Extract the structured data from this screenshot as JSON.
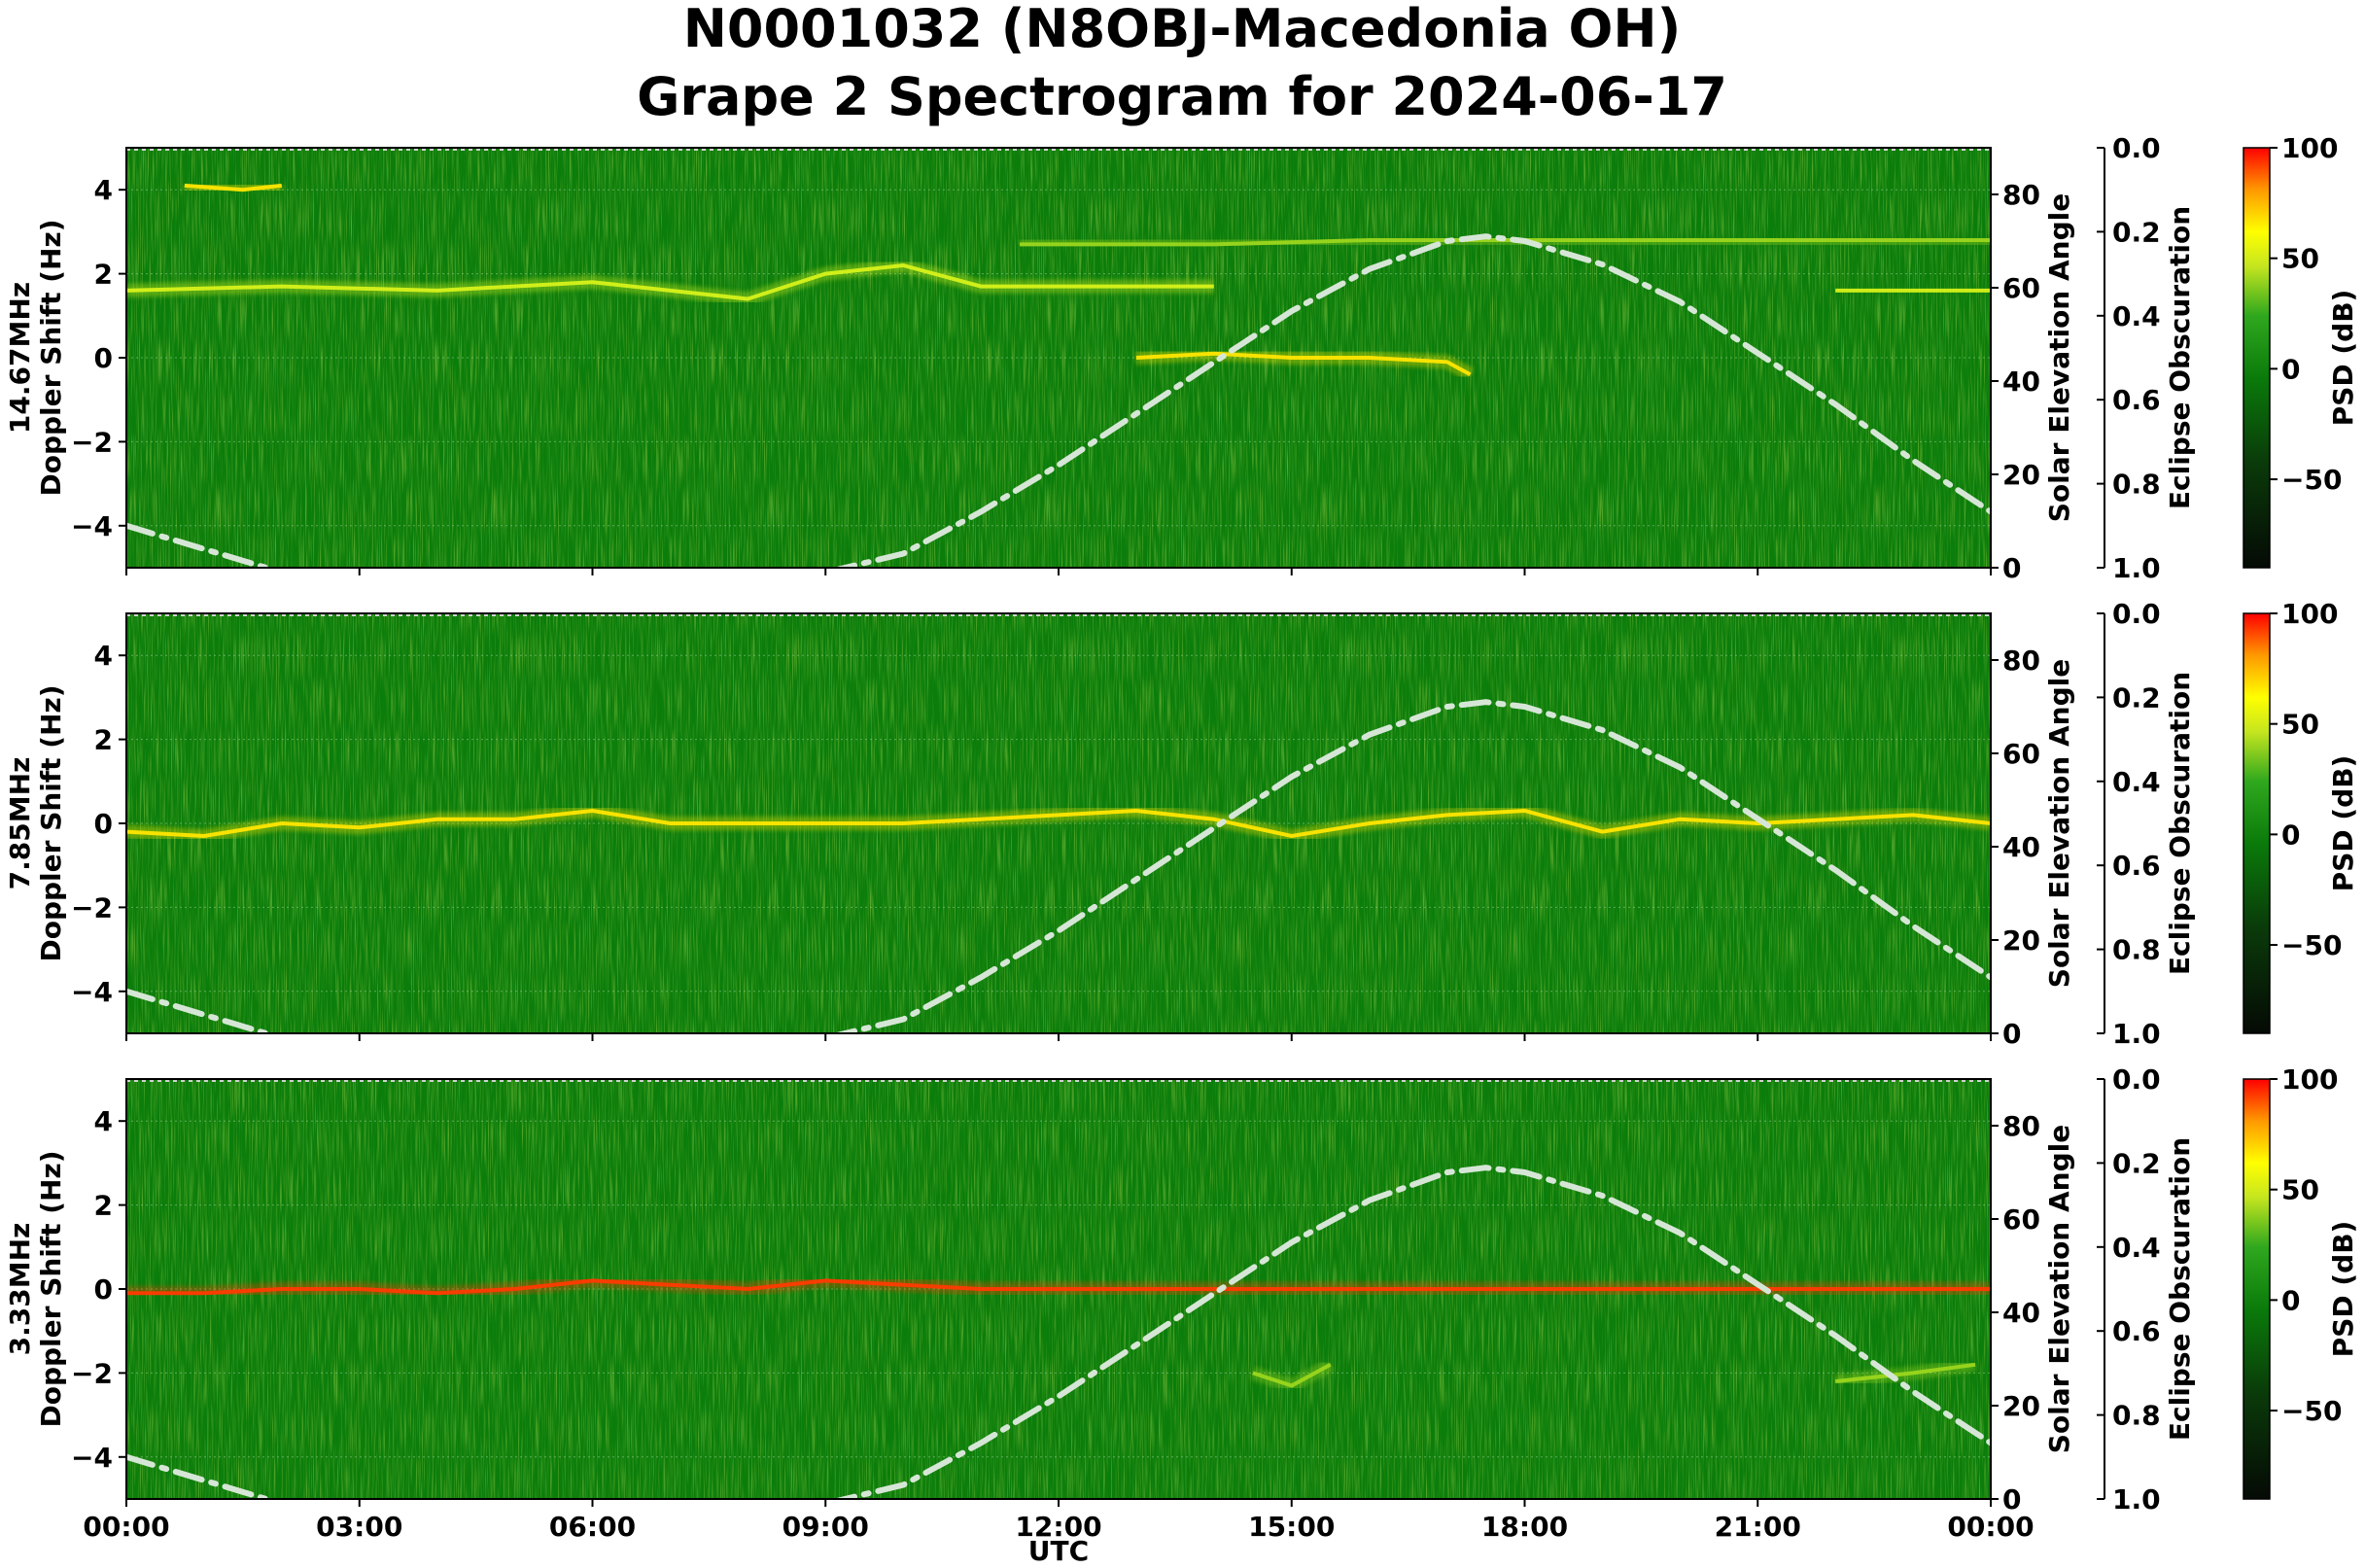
{
  "title_line1": "N0001032 (N8OBJ-Macedonia OH)",
  "title_line2": "Grape 2 Spectrogram for 2024-06-17",
  "chart_data": {
    "type": "heatmap",
    "xlabel": "UTC",
    "x_ticks": [
      "00:00",
      "03:00",
      "06:00",
      "09:00",
      "12:00",
      "15:00",
      "18:00",
      "21:00",
      "00:00"
    ],
    "x_range_hours": [
      0,
      24
    ],
    "ylabel": "Doppler Shift (Hz)",
    "ylim": [
      -5,
      5
    ],
    "y_ticks": [
      4,
      2,
      0,
      -2,
      -4
    ],
    "y_tick_labels": [
      "4",
      "2",
      "0",
      "−2",
      "−4"
    ],
    "right_axis_label": "Solar Elevation Angle",
    "right_axis_range": [
      0,
      90
    ],
    "right_axis_ticks": [
      0,
      20,
      40,
      60,
      80
    ],
    "eclipse_axis_label": "Eclipse Obscuration",
    "eclipse_axis_range": [
      0.0,
      1.0
    ],
    "eclipse_ticks": [
      "0.0",
      "0.2",
      "0.4",
      "0.6",
      "0.8",
      "1.0"
    ],
    "colorbar_label": "PSD (dB)",
    "colorbar_range": [
      -90,
      100
    ],
    "colorbar_ticks": [
      100,
      50,
      0,
      -50
    ],
    "colorbar_tick_labels": [
      "100",
      "50",
      "0",
      "−50"
    ],
    "solar_elevation_curve": {
      "style": "dash-dot",
      "color": "#d6e6d6",
      "x_hours": [
        0,
        1,
        2,
        3,
        4,
        5,
        6,
        7,
        8,
        9,
        10,
        11,
        12,
        13,
        14,
        15,
        16,
        17,
        17.5,
        18,
        19,
        20,
        21,
        22,
        23,
        24
      ],
      "elevation_deg": [
        9,
        4,
        -1,
        -6,
        -10,
        -13,
        -12,
        -9,
        -5,
        -1,
        3,
        12,
        22,
        33,
        44,
        55,
        64,
        70,
        71,
        70,
        65,
        57,
        46,
        35,
        23,
        12
      ]
    },
    "panels": [
      {
        "label": "14.67MHz",
        "carrier_traces": [
          {
            "x": [
              0.75,
              1.5,
              2.0
            ],
            "y": [
              4.1,
              4.0,
              4.1
            ],
            "level_db": 60
          },
          {
            "x": [
              0.0,
              2.0,
              4.0,
              6.0,
              8.0,
              9.0,
              10.0,
              11.0,
              12.0,
              14.0
            ],
            "y": [
              1.6,
              1.7,
              1.6,
              1.8,
              1.4,
              2.0,
              2.2,
              1.7,
              1.7,
              1.7
            ],
            "level_db": 45
          },
          {
            "x": [
              11.5,
              14.0,
              16.0,
              18.0,
              20.0,
              22.0,
              24.0
            ],
            "y": [
              2.7,
              2.7,
              2.8,
              2.8,
              2.8,
              2.8,
              2.8
            ],
            "level_db": 35
          },
          {
            "x": [
              13.0,
              14.0,
              15.0,
              16.0,
              17.0,
              17.3
            ],
            "y": [
              0.0,
              0.1,
              0.0,
              0.0,
              -0.1,
              -0.4
            ],
            "level_db": 55
          },
          {
            "x": [
              22.0,
              23.0,
              24.0
            ],
            "y": [
              1.6,
              1.6,
              1.6
            ],
            "level_db": 40
          }
        ]
      },
      {
        "label": "7.85MHz",
        "carrier_traces": [
          {
            "x": [
              0.0,
              1.0,
              2.0,
              3.0,
              4.0,
              5.0,
              6.0,
              7.0,
              8.0,
              9.0,
              10.0,
              11.0,
              12.0,
              13.0,
              14.0,
              15.0,
              16.0,
              17.0,
              18.0,
              19.0,
              20.0,
              21.0,
              22.0,
              23.0,
              24.0
            ],
            "y": [
              -0.2,
              -0.3,
              0.0,
              -0.1,
              0.1,
              0.1,
              0.3,
              0.0,
              0.0,
              0.0,
              0.0,
              0.1,
              0.2,
              0.3,
              0.1,
              -0.3,
              0.0,
              0.2,
              0.3,
              -0.2,
              0.1,
              0.0,
              0.1,
              0.2,
              0.0
            ],
            "level_db": 60
          }
        ]
      },
      {
        "label": "3.33MHz",
        "carrier_traces": [
          {
            "x": [
              0.0,
              1.0,
              2.0,
              3.0,
              4.0,
              5.0,
              6.0,
              7.0,
              8.0,
              9.0,
              10.0,
              11.0,
              12.0,
              14.0,
              16.0,
              18.0,
              20.0,
              22.0,
              24.0
            ],
            "y": [
              -0.1,
              -0.1,
              0.0,
              0.0,
              -0.1,
              0.0,
              0.2,
              0.1,
              0.0,
              0.2,
              0.1,
              0.0,
              0.0,
              0.0,
              0.0,
              0.0,
              0.0,
              0.0,
              0.0
            ],
            "level_db": 75
          },
          {
            "x": [
              14.5,
              15.0,
              15.5
            ],
            "y": [
              -2.0,
              -2.3,
              -1.8
            ],
            "level_db": 35
          },
          {
            "x": [
              22.0,
              23.0,
              23.8
            ],
            "y": [
              -2.2,
              -2.0,
              -1.8
            ],
            "level_db": 30
          }
        ]
      }
    ]
  }
}
